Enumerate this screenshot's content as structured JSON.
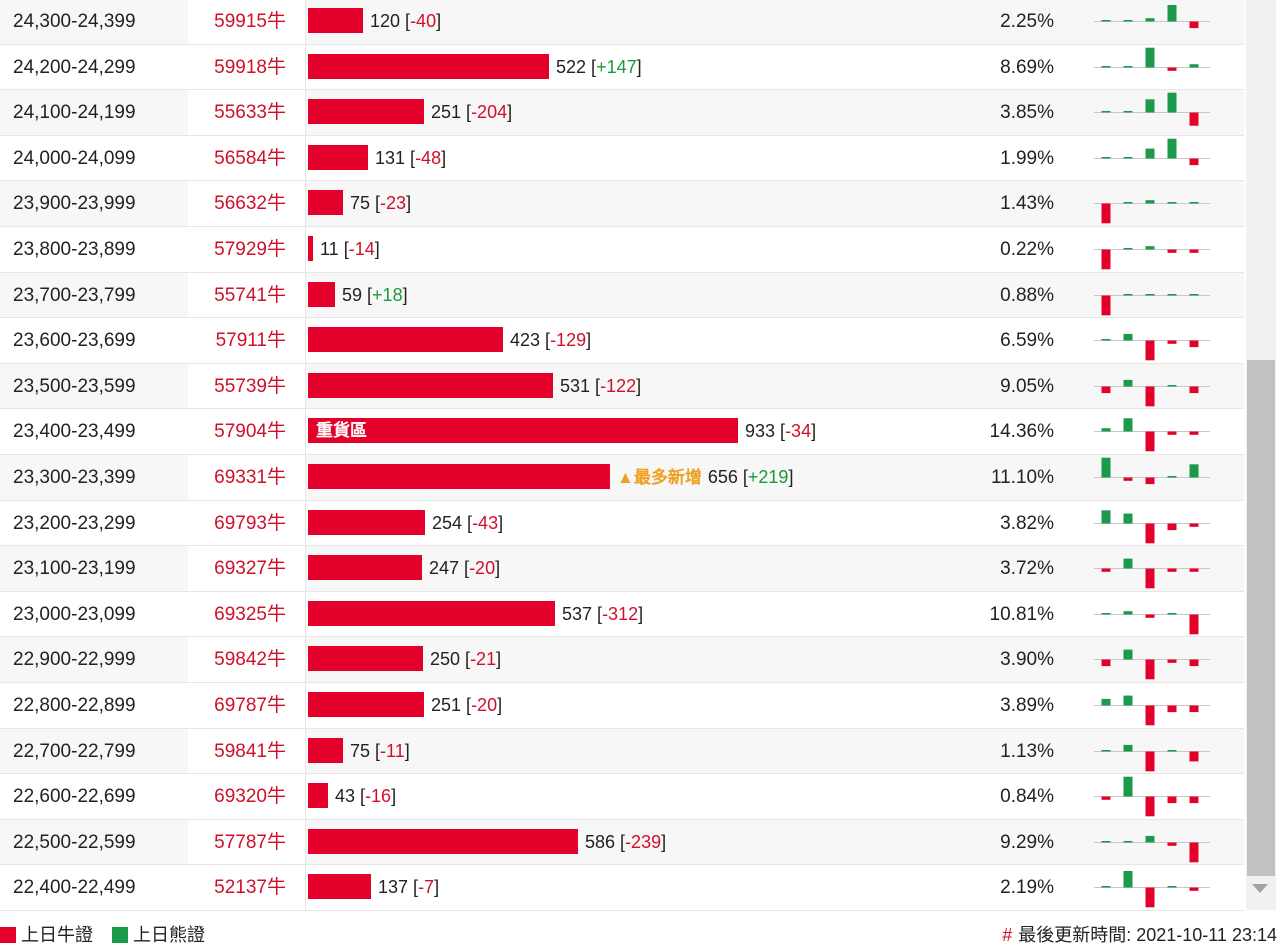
{
  "colors": {
    "bull": "#e3002b",
    "bear": "#1a9a4a",
    "highlight_note": "#f0a020"
  },
  "rows": [
    {
      "range": "24,300-24,399",
      "code": "59915牛",
      "value": 120,
      "count": "120",
      "change": "-40",
      "pct": "2.25%",
      "spark": [
        0,
        0,
        1,
        5,
        -2
      ]
    },
    {
      "range": "24,200-24,299",
      "code": "59918牛",
      "value": 522,
      "count": "522",
      "change": "+147",
      "pct": "8.69%",
      "spark": [
        0,
        0,
        6,
        -1,
        1
      ]
    },
    {
      "range": "24,100-24,199",
      "code": "55633牛",
      "value": 251,
      "count": "251",
      "change": "-204",
      "pct": "3.85%",
      "spark": [
        0,
        0,
        4,
        6,
        -4
      ]
    },
    {
      "range": "24,000-24,099",
      "code": "56584牛",
      "value": 131,
      "count": "131",
      "change": "-48",
      "pct": "1.99%",
      "spark": [
        0,
        0,
        3,
        6,
        -2
      ]
    },
    {
      "range": "23,900-23,999",
      "code": "56632牛",
      "value": 75,
      "count": "75",
      "change": "-23",
      "pct": "1.43%",
      "spark": [
        -6,
        0,
        1,
        0,
        0
      ]
    },
    {
      "range": "23,800-23,899",
      "code": "57929牛",
      "value": 11,
      "count": "11",
      "change": "-14",
      "pct": "0.22%",
      "spark": [
        -6,
        0,
        1,
        -1,
        -1
      ]
    },
    {
      "range": "23,700-23,799",
      "code": "55741牛",
      "value": 59,
      "count": "59",
      "change": "+18",
      "pct": "0.88%",
      "spark": [
        -6,
        0,
        0,
        0,
        0
      ]
    },
    {
      "range": "23,600-23,699",
      "code": "57911牛",
      "value": 423,
      "count": "423",
      "change": "-129",
      "pct": "6.59%",
      "spark": [
        0,
        2,
        -6,
        -1,
        -2
      ]
    },
    {
      "range": "23,500-23,599",
      "code": "55739牛",
      "value": 531,
      "count": "531",
      "change": "-122",
      "pct": "9.05%",
      "spark": [
        -2,
        2,
        -6,
        0,
        -2
      ]
    },
    {
      "range": "23,400-23,499",
      "code": "57904牛",
      "value": 933,
      "count": "933",
      "change": "-34",
      "pct": "14.36%",
      "label": "重貨區",
      "spark": [
        1,
        4,
        -6,
        -1,
        -1
      ]
    },
    {
      "range": "23,300-23,399",
      "code": "69331牛",
      "value": 656,
      "count": "656",
      "change": "+219",
      "pct": "11.10%",
      "note": "▲最多新增",
      "spark": [
        6,
        -1,
        -2,
        0,
        4
      ]
    },
    {
      "range": "23,200-23,299",
      "code": "69793牛",
      "value": 254,
      "count": "254",
      "change": "-43",
      "pct": "3.82%",
      "spark": [
        4,
        3,
        -6,
        -2,
        -1
      ]
    },
    {
      "range": "23,100-23,199",
      "code": "69327牛",
      "value": 247,
      "count": "247",
      "change": "-20",
      "pct": "3.72%",
      "spark": [
        -1,
        3,
        -6,
        -1,
        -1
      ]
    },
    {
      "range": "23,000-23,099",
      "code": "69325牛",
      "value": 537,
      "count": "537",
      "change": "-312",
      "pct": "10.81%",
      "spark": [
        0,
        1,
        -1,
        0,
        -6
      ]
    },
    {
      "range": "22,900-22,999",
      "code": "59842牛",
      "value": 250,
      "count": "250",
      "change": "-21",
      "pct": "3.90%",
      "spark": [
        -2,
        3,
        -6,
        -1,
        -2
      ]
    },
    {
      "range": "22,800-22,899",
      "code": "69787牛",
      "value": 251,
      "count": "251",
      "change": "-20",
      "pct": "3.89%",
      "spark": [
        2,
        3,
        -6,
        -2,
        -2
      ]
    },
    {
      "range": "22,700-22,799",
      "code": "59841牛",
      "value": 75,
      "count": "75",
      "change": "-11",
      "pct": "1.13%",
      "spark": [
        0,
        2,
        -6,
        0,
        -3
      ]
    },
    {
      "range": "22,600-22,699",
      "code": "69320牛",
      "value": 43,
      "count": "43",
      "change": "-16",
      "pct": "0.84%",
      "spark": [
        -1,
        6,
        -6,
        -2,
        -2
      ]
    },
    {
      "range": "22,500-22,599",
      "code": "57787牛",
      "value": 586,
      "count": "586",
      "change": "-239",
      "pct": "9.29%",
      "spark": [
        0,
        0,
        2,
        -1,
        -6
      ]
    },
    {
      "range": "22,400-22,499",
      "code": "52137牛",
      "value": 137,
      "count": "137",
      "change": "-7",
      "pct": "2.19%",
      "spark": [
        0,
        5,
        -6,
        0,
        -1
      ]
    }
  ],
  "legend": {
    "bull_label": "上日牛證",
    "bear_label": "上日熊證"
  },
  "footer": {
    "hash": "#",
    "updated_label": "最後更新時間: 2021-10-11 23:14"
  }
}
